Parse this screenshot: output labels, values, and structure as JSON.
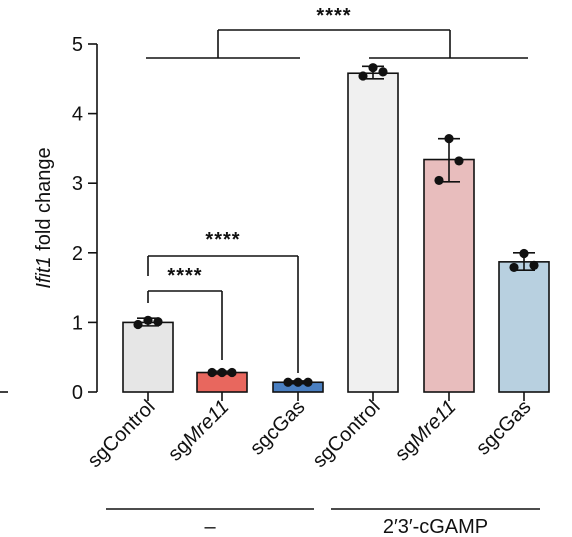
{
  "chart_data": {
    "type": "bar",
    "ylabel_italic": "Ifit1",
    "ylabel_rest": " fold change",
    "ylim": [
      0,
      5
    ],
    "yticks": [
      0,
      1,
      2,
      3,
      4,
      5
    ],
    "grid": false,
    "categories": [
      {
        "prefix": "sg",
        "name": "Control",
        "italic": false
      },
      {
        "prefix": "sg",
        "name": "Mre11",
        "italic": true
      },
      {
        "prefix": "sg",
        "name": "cGas",
        "italic": false
      },
      {
        "prefix": "sg",
        "name": "Control",
        "italic": false
      },
      {
        "prefix": "sg",
        "name": "Mre11",
        "italic": true
      },
      {
        "prefix": "sg",
        "name": "cGas",
        "italic": false
      }
    ],
    "values": [
      1.0,
      0.28,
      0.14,
      4.58,
      3.34,
      1.87
    ],
    "error_low": [
      0.95,
      0.26,
      0.12,
      4.5,
      3.02,
      1.75
    ],
    "error_high": [
      1.06,
      0.3,
      0.16,
      4.68,
      3.64,
      2.0
    ],
    "points": [
      [
        0.97,
        1.03,
        1.01
      ],
      [
        0.28,
        0.28,
        0.28
      ],
      [
        0.14,
        0.14,
        0.14
      ],
      [
        4.54,
        4.66,
        4.6
      ],
      [
        3.04,
        3.64,
        3.32
      ],
      [
        1.79,
        1.99,
        1.82
      ]
    ],
    "colors": [
      "#e6e6e6",
      "#e8675e",
      "#4a7fc1",
      "#f0f0f0",
      "#e8bdbd",
      "#b8d0e0"
    ],
    "groups": [
      {
        "label": "–",
        "from": 0,
        "to": 2
      },
      {
        "label": "2′3′-cGAMP",
        "from": 3,
        "to": 5
      }
    ],
    "annotations": [
      {
        "label": "****",
        "type": "group-compare"
      },
      {
        "label": "****",
        "type": "pair",
        "from": 0,
        "to": 1
      },
      {
        "label": "****",
        "type": "pair",
        "from": 0,
        "to": 2
      }
    ]
  }
}
